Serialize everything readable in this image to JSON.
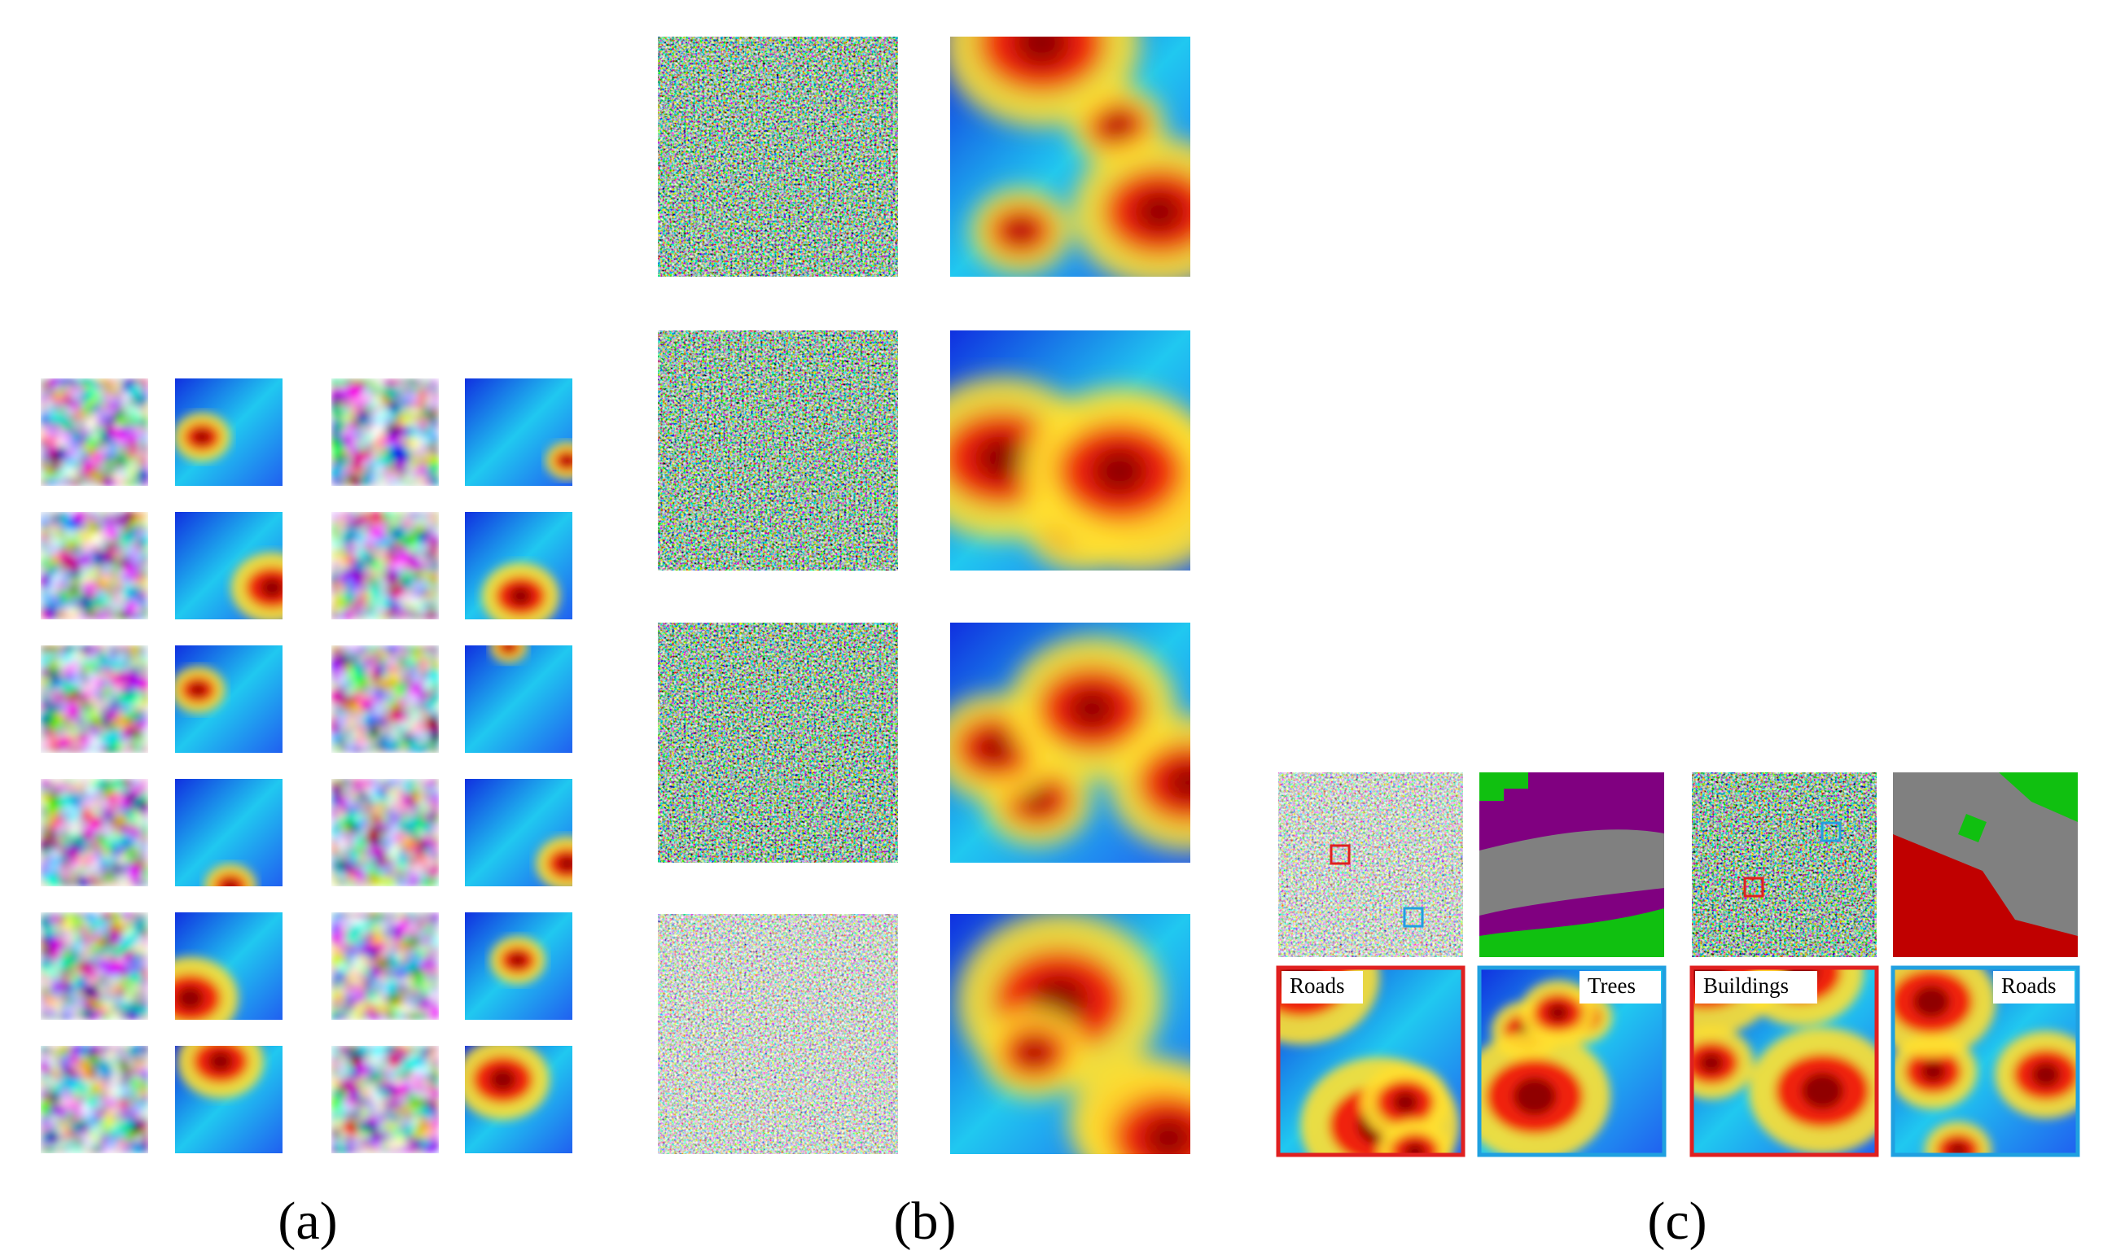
{
  "panels": [
    {
      "label": "(a)"
    },
    {
      "label": "(b)"
    },
    {
      "label": "(c)",
      "tags": [
        "Roads",
        "Trees",
        "Buildings",
        "Roads"
      ]
    }
  ]
}
